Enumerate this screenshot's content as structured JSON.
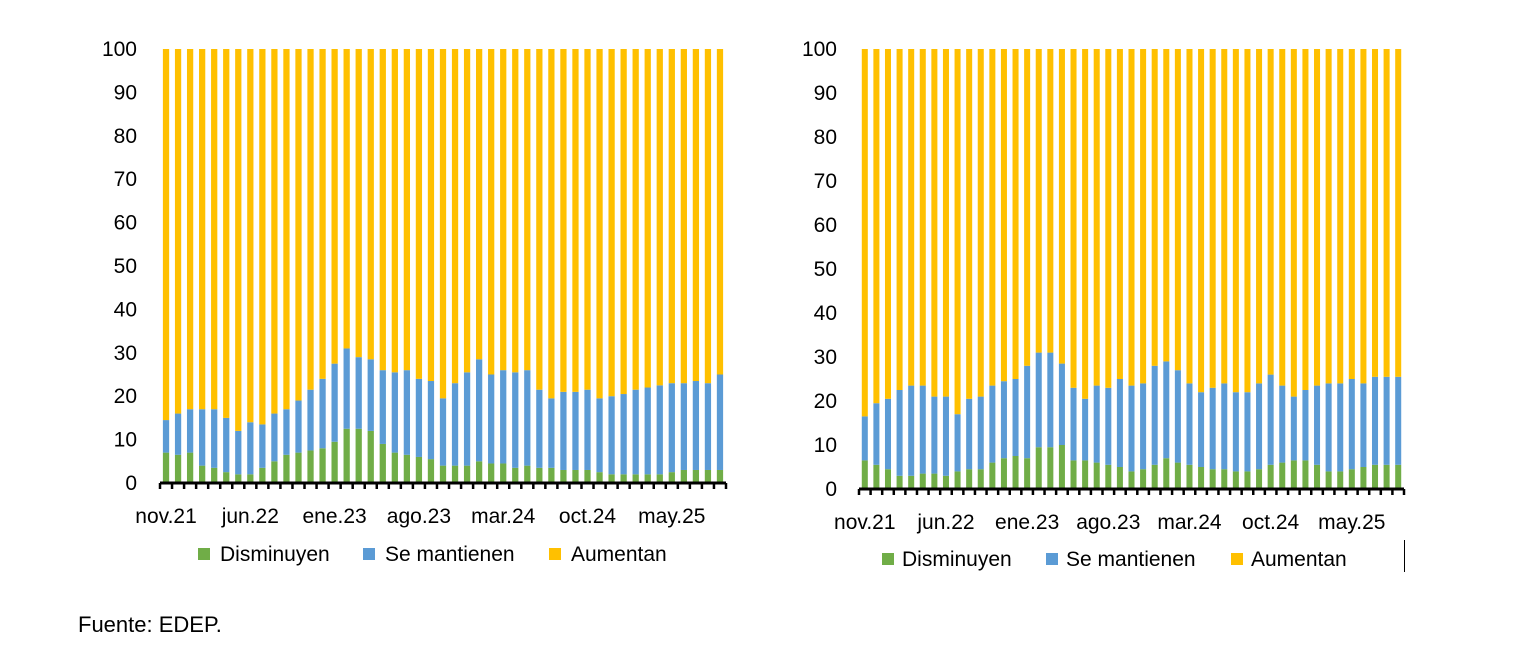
{
  "source": "Fuente: EDEP.",
  "chart_data": [
    {
      "type": "bar",
      "stacked": true,
      "ylim": [
        0,
        100
      ],
      "yticks": [
        "0",
        "10",
        "20",
        "30",
        "40",
        "50",
        "60",
        "70",
        "80",
        "90",
        "100"
      ],
      "xtick_labels": [
        "nov.21",
        "jun.22",
        "ene.23",
        "ago.23",
        "mar.24",
        "oct.24",
        "may.25"
      ],
      "grid": false,
      "legend_position": "bottom",
      "colors": {
        "Disminuyen": "#70ad47",
        "Se mantienen": "#5b9bd5",
        "Aumentan": "#ffc000"
      },
      "categories": [
        "nov.21",
        "dic.21",
        "ene.22",
        "feb.22",
        "mar.22",
        "abr.22",
        "may.22",
        "jun.22",
        "jul.22",
        "ago.22",
        "sep.22",
        "oct.22",
        "nov.22",
        "dic.22",
        "ene.23",
        "feb.23",
        "mar.23",
        "abr.23",
        "may.23",
        "jun.23",
        "jul.23",
        "ago.23",
        "sep.23",
        "oct.23",
        "nov.23",
        "dic.23",
        "ene.24",
        "feb.24",
        "mar.24",
        "abr.24",
        "may.24",
        "jun.24",
        "jul.24",
        "ago.24",
        "sep.24",
        "oct.24",
        "nov.24",
        "dic.24",
        "ene.25",
        "feb.25",
        "mar.25",
        "abr.25",
        "may.25",
        "jun.25",
        "jul.25",
        "ago.25",
        "sep.25"
      ],
      "series": [
        {
          "name": "Disminuyen",
          "values": [
            7,
            6.5,
            7,
            4,
            3.5,
            2.5,
            2,
            2,
            3.5,
            5,
            6.5,
            7,
            7.5,
            8,
            9.5,
            12.5,
            12.5,
            12,
            9,
            7,
            6.5,
            6,
            5.5,
            4,
            4,
            4,
            5,
            4.5,
            4.5,
            3.5,
            4,
            3.5,
            3.5,
            3,
            3,
            3,
            2.5,
            2,
            2,
            2,
            2,
            2,
            2.5,
            3,
            3,
            3,
            3
          ]
        },
        {
          "name": "Se mantienen",
          "values": [
            7.5,
            9.5,
            10,
            13,
            13.5,
            12.5,
            10,
            12,
            10,
            11,
            10.5,
            12,
            14,
            16,
            18,
            18.5,
            16.5,
            16.5,
            17,
            18.5,
            19.5,
            18,
            18,
            15.5,
            19,
            21.5,
            23.5,
            20.5,
            21.5,
            22,
            22,
            18,
            16,
            18,
            18,
            18.5,
            17,
            18,
            18.5,
            19.5,
            20,
            20.5,
            20.5,
            20,
            20.5,
            20,
            22
          ]
        },
        {
          "name": "Aumentan",
          "values": [
            85.5,
            84,
            83,
            83,
            83,
            85,
            88,
            86,
            86.5,
            84,
            83,
            81,
            78.5,
            76,
            72.5,
            69,
            71,
            71.5,
            74,
            74.5,
            74,
            76,
            76.5,
            80.5,
            77,
            74.5,
            71.5,
            75,
            74,
            74.5,
            74,
            78.5,
            80.5,
            79,
            79,
            78.5,
            80.5,
            80,
            79.5,
            78.5,
            78,
            77.5,
            77,
            77,
            76.5,
            77,
            75
          ]
        }
      ]
    },
    {
      "type": "bar",
      "stacked": true,
      "ylim": [
        0,
        100
      ],
      "yticks": [
        "0",
        "10",
        "20",
        "30",
        "40",
        "50",
        "60",
        "70",
        "80",
        "90",
        "100"
      ],
      "xtick_labels": [
        "nov.21",
        "jun.22",
        "ene.23",
        "ago.23",
        "mar.24",
        "oct.24",
        "may.25"
      ],
      "grid": false,
      "legend_position": "bottom",
      "colors": {
        "Disminuyen": "#70ad47",
        "Se mantienen": "#5b9bd5",
        "Aumentan": "#ffc000"
      },
      "categories": [
        "nov.21",
        "dic.21",
        "ene.22",
        "feb.22",
        "mar.22",
        "abr.22",
        "may.22",
        "jun.22",
        "jul.22",
        "ago.22",
        "sep.22",
        "oct.22",
        "nov.22",
        "dic.22",
        "ene.23",
        "feb.23",
        "mar.23",
        "abr.23",
        "may.23",
        "jun.23",
        "jul.23",
        "ago.23",
        "sep.23",
        "oct.23",
        "nov.23",
        "dic.23",
        "ene.24",
        "feb.24",
        "mar.24",
        "abr.24",
        "may.24",
        "jun.24",
        "jul.24",
        "ago.24",
        "sep.24",
        "oct.24",
        "nov.24",
        "dic.24",
        "ene.25",
        "feb.25",
        "mar.25",
        "abr.25",
        "may.25",
        "jun.25",
        "jul.25",
        "ago.25",
        "sep.25"
      ],
      "series": [
        {
          "name": "Disminuyen",
          "values": [
            6.5,
            5.5,
            4.5,
            3,
            3,
            3.5,
            3.5,
            3,
            4,
            4.5,
            4.5,
            6,
            7,
            7.5,
            7,
            9.5,
            9.5,
            10,
            6.5,
            6.5,
            6,
            5.5,
            5,
            4,
            4.5,
            5.5,
            7,
            6,
            5.5,
            5,
            4.5,
            4.5,
            4,
            4,
            4.5,
            5.5,
            6,
            6.5,
            6.5,
            5.5,
            4,
            4,
            4.5,
            5,
            5.5,
            5.5,
            5.5
          ]
        },
        {
          "name": "Se mantienen",
          "values": [
            10,
            14,
            16,
            19.5,
            20.5,
            20,
            17.5,
            18,
            13,
            16,
            16.5,
            17.5,
            17.5,
            17.5,
            21,
            21.5,
            21.5,
            18.5,
            16.5,
            14,
            17.5,
            17.5,
            20,
            19.5,
            19.5,
            22.5,
            22,
            21,
            18.5,
            17,
            18.5,
            19.5,
            18,
            18,
            19.5,
            20.5,
            17.5,
            14.5,
            16,
            18,
            20,
            20,
            20.5,
            19,
            20,
            20,
            20
          ]
        },
        {
          "name": "Aumentan",
          "values": [
            83.5,
            80.5,
            79.5,
            77.5,
            76.5,
            76.5,
            79,
            79,
            83,
            79.5,
            79,
            76.5,
            75.5,
            75,
            72,
            69,
            69,
            71.5,
            77,
            79.5,
            76.5,
            77,
            75,
            76.5,
            76,
            72,
            71,
            73,
            76,
            78,
            77,
            76,
            78,
            78,
            76,
            74,
            76.5,
            79,
            77.5,
            76.5,
            76,
            76,
            75,
            76,
            74.5,
            74.5,
            74.5
          ]
        }
      ]
    }
  ]
}
